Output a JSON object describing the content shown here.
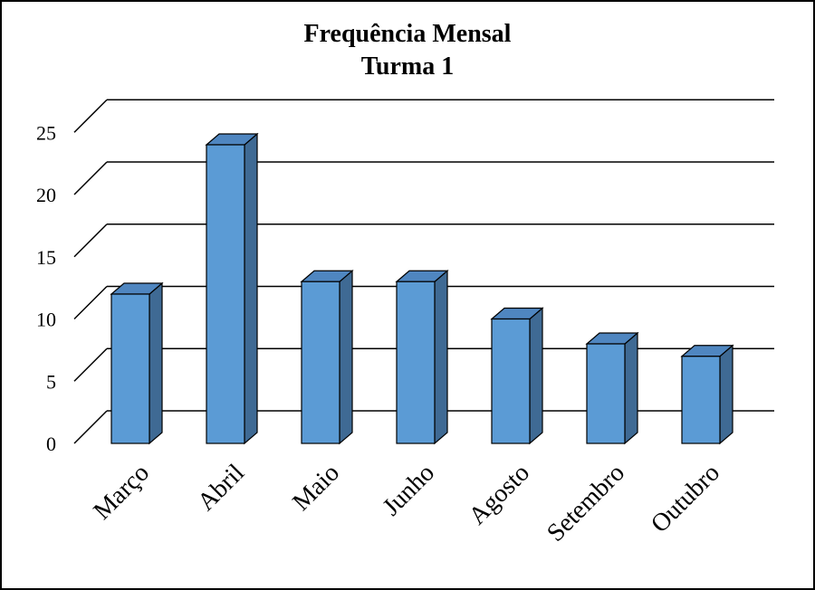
{
  "chart_data": {
    "type": "bar",
    "title": "Frequência Mensal",
    "subtitle": "Turma 1",
    "categories": [
      "Março",
      "Abril",
      "Maio",
      "Junho",
      "Agosto",
      "Setembro",
      "Outubro"
    ],
    "values": [
      12,
      24,
      13,
      13,
      10,
      8,
      7
    ],
    "ylim": [
      0,
      25
    ],
    "yticks": [
      0,
      5,
      10,
      15,
      20,
      25
    ],
    "grid": true,
    "bar_color": "#5b9bd5",
    "bar_side_color": "#3f6a94",
    "bar_top_color": "#4f86c0"
  }
}
